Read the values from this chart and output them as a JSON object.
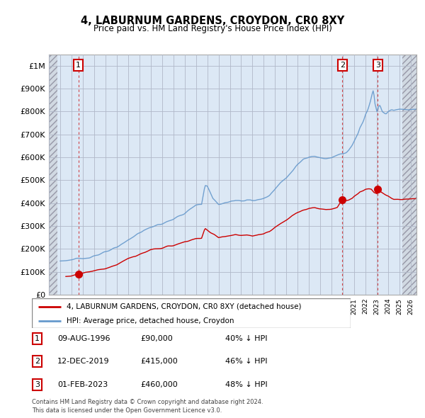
{
  "title": "4, LABURNUM GARDENS, CROYDON, CR0 8XY",
  "subtitle": "Price paid vs. HM Land Registry's House Price Index (HPI)",
  "legend_line1": "4, LABURNUM GARDENS, CROYDON, CR0 8XY (detached house)",
  "legend_line2": "HPI: Average price, detached house, Croydon",
  "footer1": "Contains HM Land Registry data © Crown copyright and database right 2024.",
  "footer2": "This data is licensed under the Open Government Licence v3.0.",
  "sales": [
    {
      "num": 1,
      "date_num": 1996.61,
      "price": 90000,
      "label": "09-AUG-1996",
      "pct": "40% ↓ HPI"
    },
    {
      "num": 2,
      "date_num": 2019.95,
      "price": 415000,
      "label": "12-DEC-2019",
      "pct": "46% ↓ HPI"
    },
    {
      "num": 3,
      "date_num": 2023.08,
      "price": 460000,
      "label": "01-FEB-2023",
      "pct": "48% ↓ HPI"
    }
  ],
  "hpi_color": "#6699cc",
  "sale_color": "#cc0000",
  "dashed_color": "#cc0000",
  "grid_color": "#b0b8c8",
  "xmin": 1994.0,
  "xmax": 2026.5,
  "ymin": 0,
  "ymax": 1050000,
  "yticks": [
    0,
    100000,
    200000,
    300000,
    400000,
    500000,
    600000,
    700000,
    800000,
    900000,
    1000000
  ],
  "ylabels": [
    "£0",
    "£100K",
    "£200K",
    "£300K",
    "£400K",
    "£500K",
    "£600K",
    "£700K",
    "£800K",
    "£900K",
    "£1M"
  ],
  "hatch_left_end": 1994.75,
  "hatch_right_start": 2025.25,
  "chart_bg": "#dce8f5",
  "hatch_bg": "#d0d8e0"
}
